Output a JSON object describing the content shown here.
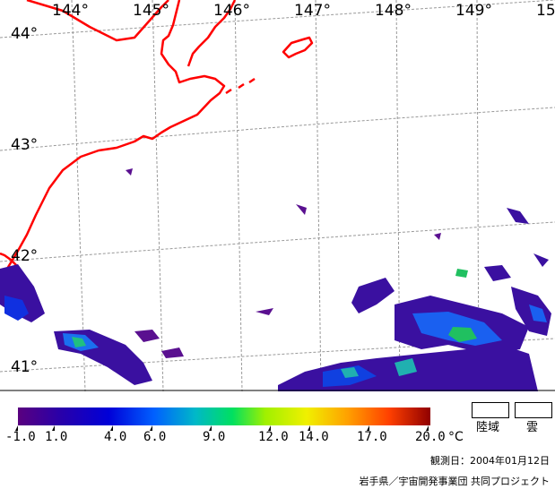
{
  "map": {
    "longitude_labels": [
      "144°",
      "145°",
      "146°",
      "147°",
      "148°",
      "149°",
      "15"
    ],
    "latitude_labels": [
      "44°",
      "43°",
      "42°",
      "41°"
    ],
    "coastline_color": "#ff0000",
    "graticule_color": "#999999"
  },
  "colorbar": {
    "tick_labels": [
      "-1.0",
      "1.0",
      "4.0",
      "6.0",
      "9.0",
      "12.0",
      "14.0",
      "17.0",
      "20.0"
    ],
    "unit": "°C",
    "range": [
      -1.0,
      20.0
    ],
    "colors": [
      "#5a007f",
      "#2a00a8",
      "#0000d8",
      "#0060ff",
      "#00b8c8",
      "#00e060",
      "#a0f000",
      "#f0f000",
      "#ffa000",
      "#ff4000",
      "#c00000",
      "#900000"
    ]
  },
  "legend": {
    "land_label": "陸域",
    "cloud_label": "雲"
  },
  "observation_date": "観測日：2004年01月12日",
  "credit": "岩手県／宇宙開発事業団 共同プロジェクト"
}
